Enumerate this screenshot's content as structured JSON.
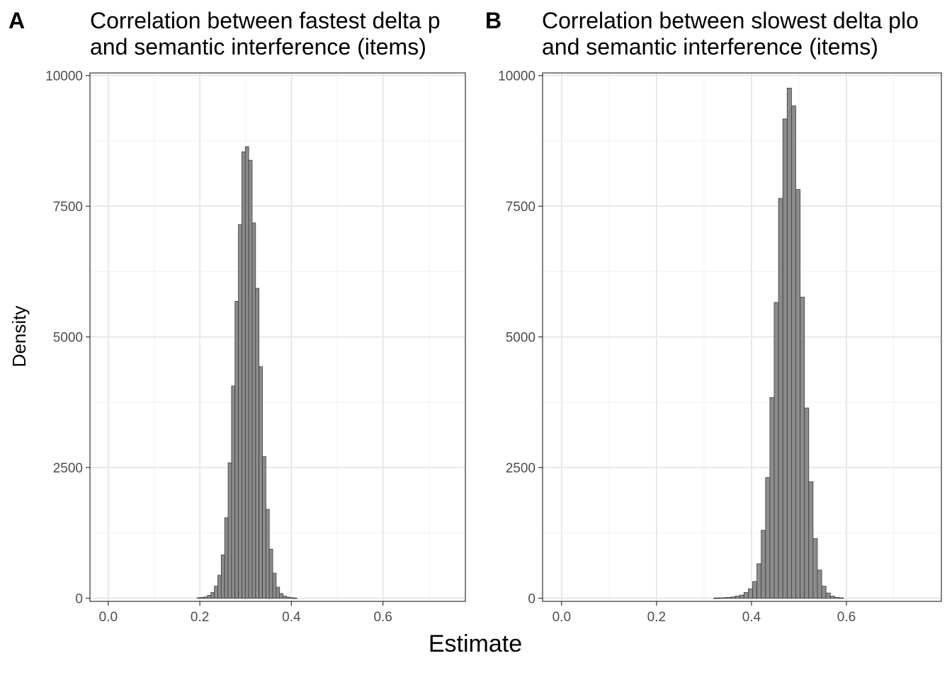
{
  "figure": {
    "xlabel": "Estimate",
    "ylabel": "Density"
  },
  "colors": {
    "bar_fill": "#8c8c8c",
    "bar_stroke": "#3a3a3a",
    "grid_major": "#e6e6e6",
    "grid_minor": "#f2f2f2",
    "panel_border": "#333333"
  },
  "chart_data": [
    {
      "type": "bar",
      "tag": "A",
      "title_lines": [
        "Correlation between fastest delta p",
        "and semantic interference (items)"
      ],
      "xlabel": "Estimate",
      "ylabel": "Density",
      "xlim": [
        -0.04,
        0.78
      ],
      "ylim": [
        -60,
        10050
      ],
      "x_ticks": [
        0.0,
        0.2,
        0.4,
        0.6
      ],
      "x_tick_labels": [
        "0.0",
        "0.2",
        "0.4",
        "0.6"
      ],
      "y_ticks": [
        0,
        2500,
        5000,
        7500,
        10000
      ],
      "y_tick_labels": [
        "0",
        "2500",
        "5000",
        "7500",
        "10000"
      ],
      "grid": true,
      "bin_width": 0.0075,
      "bins": [
        {
          "x": 0.198,
          "y": 10
        },
        {
          "x": 0.2055,
          "y": 15
        },
        {
          "x": 0.213,
          "y": 25
        },
        {
          "x": 0.2205,
          "y": 55
        },
        {
          "x": 0.228,
          "y": 110
        },
        {
          "x": 0.2355,
          "y": 230
        },
        {
          "x": 0.243,
          "y": 440
        },
        {
          "x": 0.2505,
          "y": 830
        },
        {
          "x": 0.258,
          "y": 1540
        },
        {
          "x": 0.2655,
          "y": 2590
        },
        {
          "x": 0.273,
          "y": 4060
        },
        {
          "x": 0.2805,
          "y": 5680
        },
        {
          "x": 0.288,
          "y": 7150
        },
        {
          "x": 0.2955,
          "y": 8540
        },
        {
          "x": 0.303,
          "y": 8640
        },
        {
          "x": 0.3105,
          "y": 8380
        },
        {
          "x": 0.318,
          "y": 7180
        },
        {
          "x": 0.3255,
          "y": 5930
        },
        {
          "x": 0.333,
          "y": 4430
        },
        {
          "x": 0.3405,
          "y": 2710
        },
        {
          "x": 0.348,
          "y": 1700
        },
        {
          "x": 0.3555,
          "y": 940
        },
        {
          "x": 0.363,
          "y": 480
        },
        {
          "x": 0.3705,
          "y": 210
        },
        {
          "x": 0.378,
          "y": 90
        },
        {
          "x": 0.3855,
          "y": 40
        },
        {
          "x": 0.393,
          "y": 20
        },
        {
          "x": 0.4005,
          "y": 10
        },
        {
          "x": 0.408,
          "y": 5
        }
      ]
    },
    {
      "type": "bar",
      "tag": "B",
      "title_lines": [
        "Correlation between slowest delta plo",
        "and semantic interference (items)"
      ],
      "xlabel": "Estimate",
      "ylabel": "Density",
      "xlim": [
        -0.04,
        0.8
      ],
      "ylim": [
        -60,
        10050
      ],
      "x_ticks": [
        0.0,
        0.2,
        0.4,
        0.6
      ],
      "x_tick_labels": [
        "0.0",
        "0.2",
        "0.4",
        "0.6"
      ],
      "y_ticks": [
        0,
        2500,
        5000,
        7500,
        10000
      ],
      "y_tick_labels": [
        "0",
        "2500",
        "5000",
        "7500",
        "10000"
      ],
      "grid": true,
      "bin_width": 0.0091,
      "bins": [
        {
          "x": 0.325,
          "y": 5
        },
        {
          "x": 0.3341,
          "y": 8
        },
        {
          "x": 0.3432,
          "y": 10
        },
        {
          "x": 0.3523,
          "y": 15
        },
        {
          "x": 0.3614,
          "y": 25
        },
        {
          "x": 0.3705,
          "y": 40
        },
        {
          "x": 0.3796,
          "y": 60
        },
        {
          "x": 0.3887,
          "y": 110
        },
        {
          "x": 0.3978,
          "y": 180
        },
        {
          "x": 0.4069,
          "y": 320
        },
        {
          "x": 0.416,
          "y": 660
        },
        {
          "x": 0.4251,
          "y": 1300
        },
        {
          "x": 0.4342,
          "y": 2310
        },
        {
          "x": 0.4433,
          "y": 3840
        },
        {
          "x": 0.4524,
          "y": 5660
        },
        {
          "x": 0.4615,
          "y": 7650
        },
        {
          "x": 0.4706,
          "y": 9170
        },
        {
          "x": 0.4797,
          "y": 9760
        },
        {
          "x": 0.4888,
          "y": 9420
        },
        {
          "x": 0.4979,
          "y": 7820
        },
        {
          "x": 0.507,
          "y": 5760
        },
        {
          "x": 0.5161,
          "y": 3640
        },
        {
          "x": 0.5252,
          "y": 2230
        },
        {
          "x": 0.5343,
          "y": 1140
        },
        {
          "x": 0.5434,
          "y": 540
        },
        {
          "x": 0.5525,
          "y": 230
        },
        {
          "x": 0.5616,
          "y": 100
        },
        {
          "x": 0.5707,
          "y": 40
        },
        {
          "x": 0.5798,
          "y": 15
        },
        {
          "x": 0.5889,
          "y": 8
        }
      ]
    }
  ]
}
